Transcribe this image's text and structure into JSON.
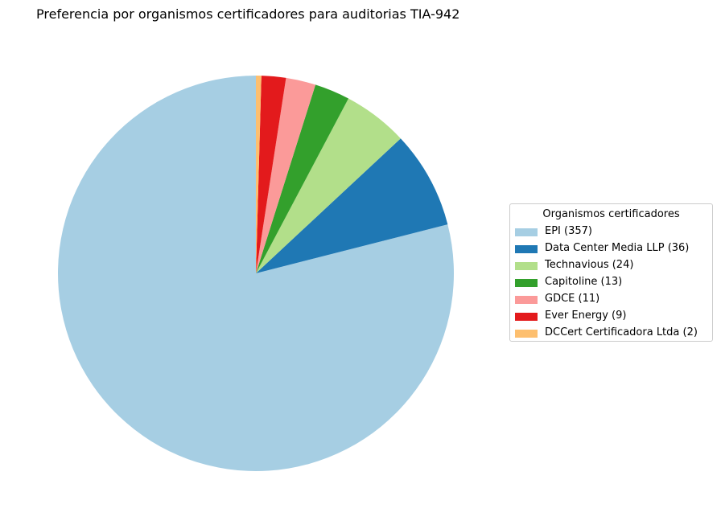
{
  "chart_data": {
    "type": "pie",
    "title": "Preferencia por organismos certificadores para auditorias TIA-942",
    "legend_title": "Organismos certificadores",
    "legend_placement": "center-right",
    "start_angle_deg": 90,
    "direction": "counterclockwise",
    "slices": [
      {
        "label": "EPI (357)",
        "value": 357,
        "color": "#a6cee3"
      },
      {
        "label": "Data Center Media LLP (36)",
        "value": 36,
        "color": "#1f78b4"
      },
      {
        "label": "Technavious (24)",
        "value": 24,
        "color": "#b2df8a"
      },
      {
        "label": "Capitoline (13)",
        "value": 13,
        "color": "#33a02c"
      },
      {
        "label": "GDCE (11)",
        "value": 11,
        "color": "#fb9a99"
      },
      {
        "label": "Ever Energy (9)",
        "value": 9,
        "color": "#e31a1c"
      },
      {
        "label": "DCCert Certificadora Ltda (2)",
        "value": 2,
        "color": "#fdbf6f"
      }
    ]
  }
}
